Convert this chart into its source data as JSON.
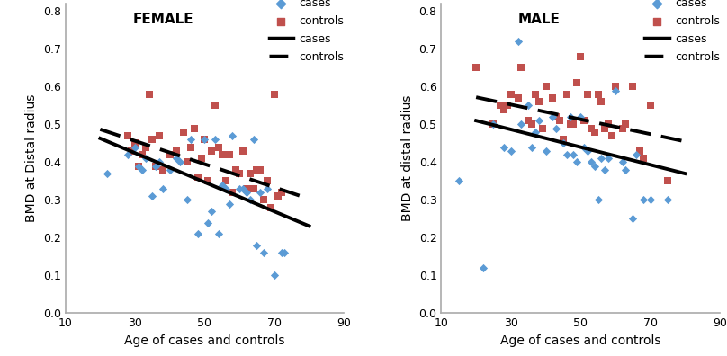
{
  "female_cases_x": [
    22,
    28,
    30,
    31,
    32,
    33,
    35,
    36,
    37,
    38,
    40,
    42,
    43,
    45,
    46,
    48,
    50,
    51,
    52,
    53,
    54,
    55,
    56,
    57,
    58,
    60,
    61,
    62,
    63,
    64,
    65,
    66,
    67,
    68,
    70,
    72,
    73
  ],
  "female_cases_y": [
    0.37,
    0.42,
    0.44,
    0.39,
    0.38,
    0.41,
    0.31,
    0.39,
    0.4,
    0.33,
    0.38,
    0.41,
    0.4,
    0.3,
    0.46,
    0.21,
    0.46,
    0.24,
    0.27,
    0.46,
    0.21,
    0.34,
    0.33,
    0.29,
    0.47,
    0.33,
    0.33,
    0.32,
    0.3,
    0.46,
    0.18,
    0.32,
    0.16,
    0.33,
    0.1,
    0.16,
    0.16
  ],
  "female_controls_x": [
    28,
    29,
    30,
    31,
    32,
    33,
    34,
    35,
    36,
    37,
    38,
    40,
    42,
    44,
    45,
    46,
    47,
    48,
    49,
    50,
    51,
    52,
    53,
    54,
    55,
    56,
    57,
    58,
    59,
    60,
    61,
    62,
    63,
    64,
    65,
    66,
    67,
    68,
    69,
    70,
    71,
    72
  ],
  "female_controls_y": [
    0.47,
    0.43,
    0.45,
    0.39,
    0.42,
    0.44,
    0.58,
    0.46,
    0.39,
    0.47,
    0.38,
    0.42,
    0.43,
    0.48,
    0.4,
    0.44,
    0.49,
    0.36,
    0.41,
    0.46,
    0.35,
    0.43,
    0.55,
    0.44,
    0.42,
    0.35,
    0.42,
    0.32,
    0.38,
    0.37,
    0.43,
    0.33,
    0.37,
    0.33,
    0.38,
    0.38,
    0.3,
    0.35,
    0.28,
    0.58,
    0.31,
    0.32
  ],
  "female_cases_line": [
    0.463,
    0.231
  ],
  "female_controls_line": [
    0.487,
    0.303
  ],
  "male_cases_x": [
    15,
    22,
    25,
    28,
    30,
    32,
    33,
    35,
    36,
    37,
    38,
    40,
    42,
    43,
    45,
    46,
    47,
    48,
    49,
    50,
    51,
    52,
    53,
    54,
    55,
    56,
    57,
    58,
    60,
    62,
    63,
    65,
    66,
    68,
    70,
    75
  ],
  "male_cases_y": [
    0.35,
    0.12,
    0.5,
    0.44,
    0.43,
    0.72,
    0.5,
    0.55,
    0.44,
    0.48,
    0.51,
    0.43,
    0.52,
    0.49,
    0.45,
    0.42,
    0.52,
    0.42,
    0.4,
    0.52,
    0.44,
    0.43,
    0.4,
    0.39,
    0.3,
    0.41,
    0.38,
    0.41,
    0.59,
    0.4,
    0.38,
    0.25,
    0.42,
    0.3,
    0.3,
    0.3
  ],
  "male_controls_x": [
    20,
    25,
    27,
    28,
    29,
    30,
    32,
    33,
    35,
    36,
    37,
    38,
    39,
    40,
    42,
    43,
    44,
    45,
    46,
    47,
    48,
    49,
    50,
    51,
    52,
    53,
    54,
    55,
    56,
    57,
    58,
    59,
    60,
    62,
    63,
    65,
    67,
    68,
    70,
    75
  ],
  "male_controls_y": [
    0.65,
    0.5,
    0.55,
    0.54,
    0.55,
    0.58,
    0.57,
    0.65,
    0.51,
    0.5,
    0.58,
    0.56,
    0.49,
    0.6,
    0.57,
    0.52,
    0.51,
    0.46,
    0.58,
    0.5,
    0.5,
    0.61,
    0.68,
    0.51,
    0.58,
    0.49,
    0.48,
    0.58,
    0.56,
    0.49,
    0.5,
    0.47,
    0.6,
    0.49,
    0.5,
    0.6,
    0.43,
    0.41,
    0.55,
    0.35
  ],
  "male_cases_line": [
    0.51,
    0.37
  ],
  "male_controls_line": [
    0.572,
    0.455
  ],
  "case_color": "#5b9bd5",
  "control_color": "#c0504d",
  "xlim": [
    10,
    90
  ],
  "ylim": [
    0,
    0.82
  ],
  "yticks": [
    0,
    0.1,
    0.2,
    0.3,
    0.4,
    0.5,
    0.6,
    0.7,
    0.8
  ],
  "xticks": [
    10,
    30,
    50,
    70,
    90
  ],
  "xlabel": "Age of cases and controls",
  "female_ylabel": "BMD at Distal radius",
  "male_ylabel": "BMD at distal radius",
  "female_title": "FEMALE",
  "male_title": "MALE",
  "line_x_start": 20,
  "line_x_end": 80
}
